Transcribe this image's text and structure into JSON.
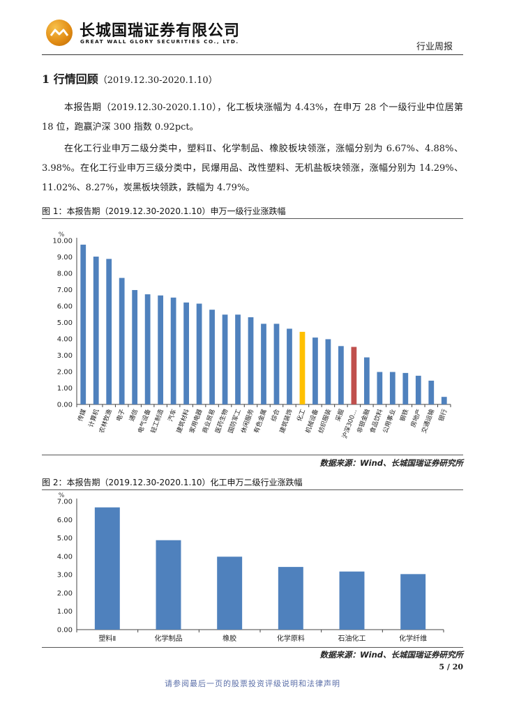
{
  "header": {
    "company_cn": "长城国瑞证券有限公司",
    "company_en": "GREAT WALL GLORY SECURITIES CO., LTD.",
    "doc_type": "行业周报"
  },
  "section": {
    "number_title": "1 行情回顾",
    "period": "（2019.12.30-2020.1.10）"
  },
  "paragraphs": [
    "本报告期（2019.12.30-2020.1.10），化工板块涨幅为 4.43%，在申万 28 个一级行业中位居第 18 位，跑赢沪深 300 指数 0.92pct。",
    "在化工行业申万二级分类中，塑料Ⅱ、化学制品、橡胶板块领涨，涨幅分别为 6.67%、4.88%、3.98%。在化工行业申万三级分类中，民爆用品、改性塑料、无机盐板块领涨，涨幅分别为 14.29%、11.02%、8.27%，炭黑板块领跌，跌幅为 4.79%。"
  ],
  "figures": [
    {
      "title": "图 1：本报告期（2019.12.30-2020.1.10）申万一级行业涨跌幅",
      "source": "数据来源：Wind、长城国瑞证券研究所"
    },
    {
      "title": "图 2：本报告期（2019.12.30-2020.1.10）化工申万二级行业涨跌幅",
      "source": "数据来源：Wind、长城国瑞证券研究所"
    }
  ],
  "page_number": "5 / 20",
  "footer": "请参阅最后一页的股票投资评级说明和法律声明",
  "colors": {
    "bar": "#4f81bd",
    "highlight": "#ffc000",
    "benchmark": "#c0504d"
  },
  "chart_data": [
    {
      "type": "bar",
      "title": "本报告期（2019.12.30-2020.1.10）申万一级行业涨跌幅",
      "ylabel": "%",
      "ylim": [
        0,
        10
      ],
      "yticks": [
        "0.00",
        "1.00",
        "2.00",
        "3.00",
        "4.00",
        "5.00",
        "6.00",
        "7.00",
        "8.00",
        "9.00",
        "10.00"
      ],
      "categories": [
        "传媒",
        "计算机",
        "农林牧渔",
        "电子",
        "通信",
        "电气设备",
        "轻工制造",
        "汽车",
        "建筑材料",
        "家用电器",
        "商业贸易",
        "医药生物",
        "国防军工",
        "休闲服务",
        "有色金属",
        "综合",
        "建筑装饰",
        "化工",
        "机械设备",
        "纺织服装",
        "采掘",
        "沪深300…",
        "非银金融",
        "食品饮料",
        "公用事业",
        "钢铁",
        "房地产",
        "交通运输",
        "银行"
      ],
      "values": [
        9.75,
        9.02,
        8.88,
        7.72,
        6.98,
        6.72,
        6.65,
        6.52,
        6.22,
        6.15,
        5.78,
        5.48,
        5.48,
        5.32,
        4.92,
        4.92,
        4.62,
        4.43,
        4.08,
        3.98,
        3.56,
        3.51,
        2.87,
        1.98,
        1.98,
        1.92,
        1.75,
        1.45,
        0.46
      ],
      "highlight": {
        "化工": "highlight",
        "沪深300…": "benchmark"
      }
    },
    {
      "type": "bar",
      "title": "本报告期（2019.12.30-2020.1.10）化工申万二级行业涨跌幅",
      "ylabel": "%",
      "ylim": [
        0,
        7
      ],
      "yticks": [
        "0.00",
        "1.00",
        "2.00",
        "3.00",
        "4.00",
        "5.00",
        "6.00",
        "7.00"
      ],
      "categories": [
        "塑料Ⅱ",
        "化学制品",
        "橡胶",
        "化学原料",
        "石油化工",
        "化学纤维"
      ],
      "values": [
        6.67,
        4.88,
        3.98,
        3.42,
        3.17,
        3.03
      ]
    }
  ]
}
